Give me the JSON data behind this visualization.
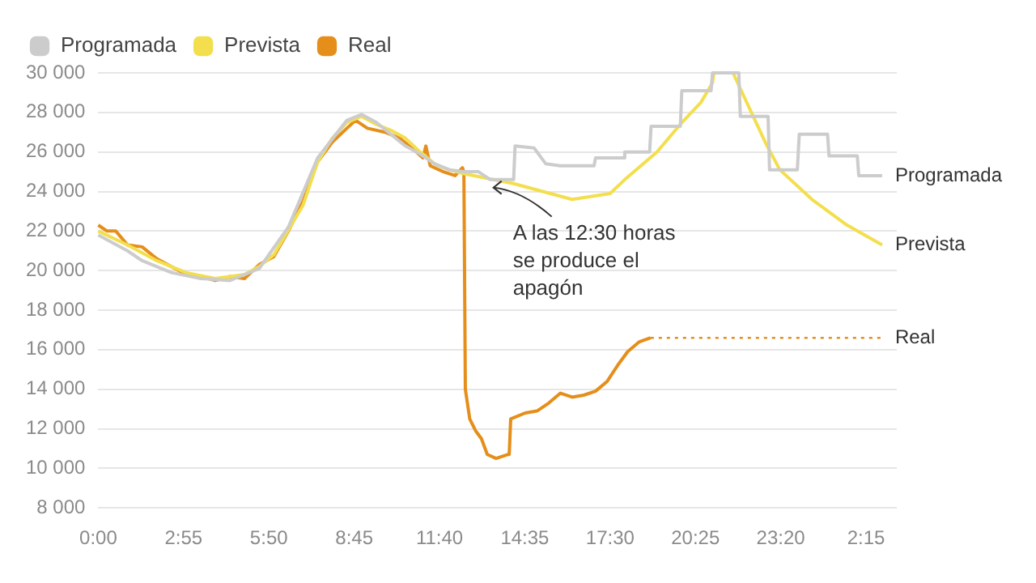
{
  "chart_data": {
    "type": "line",
    "xlim": [
      "--04-28T00:00",
      "--04-29T03:18"
    ],
    "ylim": [
      8000,
      30000
    ],
    "xticks": [
      {
        "value": "--04-28T00:00",
        "label": "0:00"
      },
      {
        "value": "--04-28T02:55",
        "label": "2:55"
      },
      {
        "value": "--04-28T05:50",
        "label": "5:50"
      },
      {
        "value": "--04-28T08:45",
        "label": "8:45"
      },
      {
        "value": "--04-28T11:40",
        "label": "11:40"
      },
      {
        "value": "--04-28T14:35",
        "label": "14:35"
      },
      {
        "value": "--04-28T17:30",
        "label": "17:30"
      },
      {
        "value": "--04-28T20:25",
        "label": "20:25"
      },
      {
        "value": "--04-28T23:20",
        "label": "23:20"
      },
      {
        "value": "--04-29T02:15",
        "label": "2:15"
      }
    ],
    "yticks": [
      {
        "value": 8000,
        "label": "8 000"
      },
      {
        "value": 10000,
        "label": "10 000"
      },
      {
        "value": 12000,
        "label": "12 000"
      },
      {
        "value": 14000,
        "label": "14 000"
      },
      {
        "value": 16000,
        "label": "16 000"
      },
      {
        "value": 18000,
        "label": "18 000"
      },
      {
        "value": 20000,
        "label": "20 000"
      },
      {
        "value": 22000,
        "label": "22 000"
      },
      {
        "value": 24000,
        "label": "24 000"
      },
      {
        "value": 26000,
        "label": "26 000"
      },
      {
        "value": 28000,
        "label": "28 000"
      },
      {
        "value": 30000,
        "label": "30 000"
      }
    ],
    "grid": "y",
    "legend": "top left",
    "marker": "none",
    "series": [
      {
        "name": "Programada",
        "color": "#cccccc",
        "x": [
          "--04-28T00:00",
          "--04-28T01:00",
          "--04-28T01:30",
          "--04-28T02:30",
          "--04-28T03:30",
          "--04-28T04:30",
          "--04-28T05:30",
          "--04-28T06:30",
          "--04-28T07:30",
          "--04-28T08:30",
          "--04-28T09:00",
          "--04-28T09:30",
          "--04-28T10:30",
          "--04-28T11:00",
          "--04-28T11:30",
          "--04-28T12:00",
          "--04-28T12:30",
          "--04-28T13:00",
          "--04-28T13:24",
          "--04-28T14:12",
          "--04-28T14:15",
          "--04-28T14:54",
          "--04-28T15:18",
          "--04-28T15:48",
          "--04-28T16:36",
          "--04-28T16:57",
          "--04-28T17:00",
          "--04-28T17:57",
          "--04-28T18:00",
          "--04-28T18:51",
          "--04-28T18:54",
          "--04-28T19:54",
          "--04-28T19:57",
          "--04-28T20:57",
          "--04-28T21:00",
          "--04-28T21:54",
          "--04-28T21:57",
          "--04-28T22:54",
          "--04-28T22:57",
          "--04-28T23:54",
          "--04-28T23:58",
          "--04-29T00:56",
          "--04-29T00:59",
          "--04-29T01:57",
          "--04-29T02:00",
          "--04-29T02:48"
        ],
        "values": [
          21800,
          21000,
          20500,
          19900,
          19600,
          19500,
          20100,
          22200,
          25700,
          27600,
          27900,
          27500,
          26300,
          25900,
          25400,
          25100,
          25000,
          25000,
          24600,
          24600,
          26300,
          26200,
          25400,
          25300,
          25300,
          25300,
          25700,
          25700,
          26000,
          26000,
          27300,
          27300,
          29100,
          29100,
          30000,
          30000,
          27800,
          27800,
          25100,
          25100,
          26900,
          26900,
          25800,
          25800,
          24800,
          24800
        ]
      },
      {
        "name": "Prevista",
        "color": "#f3df4d",
        "x": [
          "--04-28T00:00",
          "--04-28T01:00",
          "--04-28T02:00",
          "--04-28T03:00",
          "--04-28T04:00",
          "--04-28T05:00",
          "--04-28T05:30",
          "--04-28T06:00",
          "--04-28T07:00",
          "--04-28T07:30",
          "--04-28T08:00",
          "--04-28T08:30",
          "--04-28T09:00",
          "--04-28T09:30",
          "--04-28T10:00",
          "--04-28T10:30",
          "--04-28T11:00",
          "--04-28T11:30",
          "--04-28T12:00",
          "--04-28T12:30",
          "--04-28T14:12",
          "--04-28T16:12",
          "--04-28T17:30",
          "--04-28T18:00",
          "--04-28T19:06",
          "--04-28T19:54",
          "--04-28T20:36",
          "--04-28T21:00",
          "--04-28T21:03",
          "--04-28T21:42",
          "--04-28T22:48",
          "--04-28T23:18",
          "--04-29T00:24",
          "--04-29T01:36",
          "--04-29T02:48"
        ],
        "values": [
          22000,
          21300,
          20500,
          19900,
          19600,
          19800,
          20200,
          20800,
          23300,
          25500,
          26700,
          27500,
          27800,
          27400,
          27100,
          26700,
          26000,
          25400,
          25100,
          24900,
          24400,
          23600,
          23900,
          24600,
          26000,
          27400,
          28500,
          29500,
          30000,
          30000,
          26500,
          25100,
          23600,
          22300,
          21300
        ]
      },
      {
        "name": "Real",
        "color": "#e58e1a",
        "x": [
          "--04-28T00:00",
          "--04-28T00:18",
          "--04-28T00:36",
          "--04-28T01:00",
          "--04-28T01:30",
          "--04-28T02:00",
          "--04-28T02:30",
          "--04-28T03:00",
          "--04-28T03:30",
          "--04-28T04:00",
          "--04-28T04:30",
          "--04-28T05:00",
          "--04-28T05:30",
          "--04-28T06:00",
          "--04-28T06:30",
          "--04-28T07:00",
          "--04-28T07:30",
          "--04-28T08:00",
          "--04-28T08:30",
          "--04-28T08:48",
          "--04-28T09:12",
          "--04-28T09:48",
          "--04-28T10:18",
          "--04-28T10:48",
          "--04-28T11:06",
          "--04-28T11:12",
          "--04-28T11:21",
          "--04-28T11:48",
          "--04-28T12:12",
          "--04-28T12:27",
          "--04-28T12:30",
          "--04-28T12:33",
          "--04-28T12:42",
          "--04-28T12:54",
          "--04-28T13:06",
          "--04-28T13:18",
          "--04-28T13:36",
          "--04-28T14:00",
          "--04-28T14:03",
          "--04-28T14:06",
          "--04-28T14:36",
          "--04-28T15:00",
          "--04-28T15:24",
          "--04-28T15:48",
          "--04-28T16:12",
          "--04-28T16:36",
          "--04-28T17:00",
          "--04-28T17:24",
          "--04-28T17:48",
          "--04-28T18:06",
          "--04-28T18:30",
          "--04-28T18:53"
        ],
        "values": [
          22300,
          22000,
          22000,
          21300,
          21200,
          20600,
          20200,
          19800,
          19700,
          19500,
          19700,
          19600,
          20300,
          20700,
          22000,
          23500,
          25500,
          26500,
          27200,
          27600,
          27200,
          27000,
          26700,
          26100,
          25700,
          26300,
          25300,
          25000,
          24800,
          25200,
          25000,
          14000,
          12500,
          11900,
          11500,
          10700,
          10500,
          10700,
          10700,
          12500,
          12800,
          12900,
          13300,
          13800,
          13600,
          13700,
          13900,
          14400,
          15300,
          15900,
          16400,
          16600
        ]
      },
      {
        "color": "#e58e1a",
        "line_style": "dotted",
        "x": [
          "--04-28T18:53",
          "--04-29T02:48"
        ],
        "values": [
          16600,
          16600
        ]
      }
    ],
    "annotations": [
      {
        "text": "A las 12:30 horas se produce el apagón",
        "x": "--04-28T13:24",
        "y": 24200
      },
      {
        "text": "Programada",
        "x": "--04-29T02:48",
        "y": 24800
      },
      {
        "text": "Prevista",
        "x": "--04-29T02:48",
        "y": 21300
      },
      {
        "text": "Real",
        "x": "--04-29T02:48",
        "y": 16600
      }
    ]
  }
}
